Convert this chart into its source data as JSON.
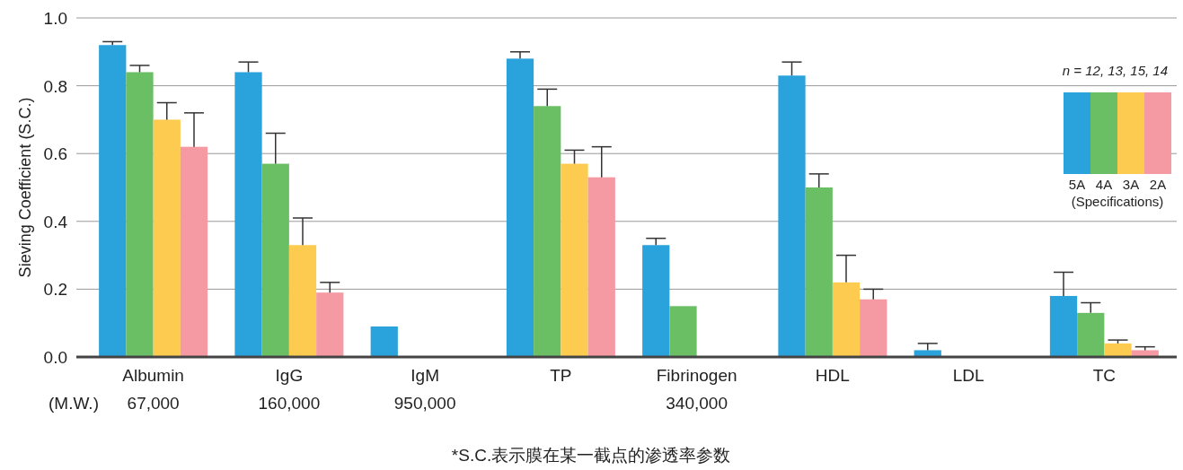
{
  "chart_data": {
    "type": "bar",
    "ylabel": "Sieving Coefficient (S.C.)",
    "legend_title": "(Specifications)",
    "categories": [
      "Albumin\n67,000",
      "IgG\n160,000",
      "IgM\n950,000",
      "TP",
      "Fibrinogen\n340,000",
      "HDL",
      "LDL",
      "TC"
    ],
    "series": [
      {
        "name": "5A",
        "color": "#2aa2dc",
        "values": [
          0.92,
          0.84,
          0.09,
          0.88,
          0.33,
          0.83,
          0.02,
          0.18
        ],
        "errors": [
          [
            0.92,
            0.93
          ],
          [
            0.84,
            0.87
          ],
          null,
          [
            0.88,
            0.9
          ],
          [
            0.33,
            0.35
          ],
          [
            0.83,
            0.87
          ],
          [
            0.02,
            0.04
          ],
          [
            0.18,
            0.25
          ]
        ]
      },
      {
        "name": "4A",
        "color": "#6abf65",
        "values": [
          0.84,
          0.57,
          null,
          0.74,
          0.15,
          0.5,
          null,
          0.13
        ],
        "errors": [
          [
            0.84,
            0.86
          ],
          [
            0.57,
            0.66
          ],
          null,
          [
            0.74,
            0.79
          ],
          null,
          [
            0.5,
            0.54
          ],
          null,
          [
            0.13,
            0.16
          ]
        ]
      },
      {
        "name": "3A",
        "color": "#fdcb50",
        "values": [
          0.7,
          0.33,
          null,
          0.57,
          null,
          0.22,
          null,
          0.04
        ],
        "errors": [
          [
            0.7,
            0.75
          ],
          [
            0.33,
            0.41
          ],
          null,
          [
            0.57,
            0.61
          ],
          null,
          [
            0.22,
            0.3
          ],
          null,
          [
            0.04,
            0.05
          ]
        ]
      },
      {
        "name": "2A",
        "color": "#f599a3",
        "values": [
          0.62,
          0.19,
          null,
          0.53,
          null,
          0.17,
          null,
          0.02
        ],
        "errors": [
          [
            0.62,
            0.72
          ],
          [
            0.19,
            0.22
          ],
          null,
          [
            0.53,
            0.62
          ],
          null,
          [
            0.17,
            0.2
          ],
          null,
          [
            0.02,
            0.03
          ]
        ]
      }
    ],
    "ylim": [
      0,
      1
    ],
    "yticks": [
      {
        "value": 0,
        "label": "0.0"
      },
      {
        "value": 0.2,
        "label": "0.2"
      },
      {
        "value": 0.4,
        "label": "0.4"
      },
      {
        "value": 0.6,
        "label": "0.6"
      },
      {
        "value": 0.8,
        "label": "0.8"
      },
      {
        "value": 1,
        "label": "1.0"
      }
    ],
    "grid": "y",
    "legend": "top right",
    "annotations": [
      "n = 12, 13, 15, 14",
      "(M.W.)",
      "*S.C.表示膜在某一截点的渗透率参数"
    ]
  }
}
